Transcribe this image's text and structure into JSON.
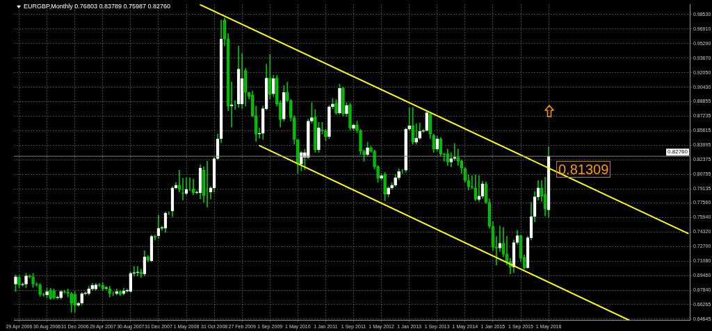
{
  "chart_data": {
    "type": "candlestick",
    "title": "EURGBP,Monthly 0.76803 0.83789 0.75987 0.82760",
    "color": "#00c800",
    "categories": [
      null,
      "29 Apr 2006",
      null,
      null,
      null,
      null,
      null,
      null,
      null,
      "30 Aug 2006",
      null,
      null,
      null,
      null,
      null,
      null,
      null,
      "31 Dec 2006",
      null,
      null,
      null,
      null,
      null,
      null,
      null,
      "29 Apr 2007",
      null,
      null,
      null,
      null,
      null,
      null,
      null,
      "30 Aug 2007",
      null,
      null,
      null,
      null,
      null,
      null,
      null,
      "31 Dec 2007",
      null,
      null,
      null,
      null,
      null,
      null,
      null,
      "1 May 2008",
      null,
      null,
      null,
      null,
      null,
      null,
      null,
      "31 Oct 2008",
      null,
      null,
      null,
      null,
      null,
      null,
      null,
      "27 Feb 2009",
      null,
      null,
      null,
      null,
      null,
      null,
      null,
      "1 Sep 2009",
      null,
      null,
      null,
      null,
      null,
      null,
      null,
      "1 May 2010",
      null,
      null,
      null,
      null,
      null,
      null,
      null,
      "1 Jan 2011",
      null,
      null,
      null,
      null,
      null,
      null,
      null,
      "1 Sep 2011",
      null,
      null,
      null,
      null,
      null,
      null,
      null,
      "1 May 2012",
      null,
      null,
      null,
      null,
      null,
      null,
      null,
      "1 Jan 2013",
      null,
      null,
      null,
      null,
      null,
      null,
      null,
      "1 Sep 2013",
      null,
      null,
      null,
      null,
      null,
      null,
      null,
      "1 May 2014",
      null,
      null,
      null,
      null,
      null,
      null,
      null,
      "1 Jan 2015",
      null,
      null,
      null,
      null,
      null,
      null,
      null,
      "1 Sep 2015",
      null,
      null,
      null,
      null,
      null,
      null,
      null,
      "1 May 2016",
      null,
      null,
      null,
      null,
      null,
      null,
      null,
      null,
      null,
      null,
      null,
      null,
      null,
      null,
      null,
      null,
      null,
      null,
      null,
      null,
      null,
      null,
      null,
      null,
      null,
      null,
      null,
      null,
      null,
      null,
      null,
      null,
      null,
      null,
      null,
      null,
      null,
      null,
      null,
      null
    ],
    "ohlc": [
      [
        0.6854,
        0.696,
        0.6771,
        0.6937
      ],
      [
        0.693,
        0.6952,
        0.6816,
        0.6846
      ],
      [
        0.6846,
        0.687,
        0.6831,
        0.6854
      ],
      [
        0.6854,
        0.6975,
        0.6816,
        0.6945
      ],
      [
        0.6945,
        0.696,
        0.6922,
        0.6937
      ],
      [
        0.6937,
        0.6975,
        0.6816,
        0.6854
      ],
      [
        0.6854,
        0.687,
        0.6831,
        0.6846
      ],
      [
        0.6846,
        0.6862,
        0.6718,
        0.674
      ],
      [
        0.674,
        0.6755,
        0.6718,
        0.6733
      ],
      [
        0.6733,
        0.6815,
        0.6702,
        0.6771
      ],
      [
        0.6786,
        0.6808,
        0.668,
        0.6695
      ],
      [
        0.6778,
        0.6801,
        0.6687,
        0.6702
      ],
      [
        0.6702,
        0.6725,
        0.6687,
        0.671
      ],
      [
        0.6702,
        0.6786,
        0.6687,
        0.6771
      ],
      [
        0.6771,
        0.6786,
        0.6748,
        0.6763
      ],
      [
        0.6763,
        0.6801,
        0.671,
        0.6755
      ],
      [
        0.6748,
        0.6763,
        0.6543,
        0.6642
      ],
      [
        0.674,
        0.6771,
        0.6543,
        0.6619
      ],
      [
        0.6619,
        0.6657,
        0.6604,
        0.6642
      ],
      [
        0.6642,
        0.6763,
        0.6619,
        0.6748
      ],
      [
        0.6748,
        0.6771,
        0.6733,
        0.6755
      ],
      [
        0.6748,
        0.6831,
        0.6733,
        0.6801
      ],
      [
        0.6801,
        0.6862,
        0.6786,
        0.6839
      ],
      [
        0.6801,
        0.6862,
        0.6786,
        0.6846
      ],
      [
        0.6846,
        0.6862,
        0.6823,
        0.6839
      ],
      [
        0.6839,
        0.687,
        0.6786,
        0.6801
      ],
      [
        0.6808,
        0.6831,
        0.6793,
        0.6815
      ],
      [
        0.6801,
        0.6831,
        0.671,
        0.6748
      ],
      [
        0.6748,
        0.6771,
        0.6725,
        0.6748
      ],
      [
        0.6748,
        0.6801,
        0.6733,
        0.6771
      ],
      [
        0.6771,
        0.6786,
        0.6725,
        0.674
      ],
      [
        0.6748,
        0.6808,
        0.6733,
        0.6778
      ],
      [
        0.6778,
        0.6801,
        0.6763,
        0.6786
      ],
      [
        0.6771,
        0.699,
        0.6763,
        0.6975
      ],
      [
        0.6975,
        0.7051,
        0.6945,
        0.6983
      ],
      [
        0.6983,
        0.7051,
        0.6945,
        0.699
      ],
      [
        0.699,
        0.702,
        0.693,
        0.6968
      ],
      [
        0.6968,
        0.7226,
        0.6945,
        0.7157
      ],
      [
        0.7157,
        0.7172,
        0.7104,
        0.7119
      ],
      [
        0.7112,
        0.74,
        0.7104,
        0.7385
      ],
      [
        0.7385,
        0.74,
        0.7347,
        0.7377
      ],
      [
        0.7393,
        0.762,
        0.7362,
        0.7476
      ],
      [
        0.7476,
        0.7499,
        0.7453,
        0.7484
      ],
      [
        0.7476,
        0.7658,
        0.7431,
        0.7643
      ],
      [
        0.7643,
        0.7658,
        0.7628,
        0.7643
      ],
      [
        0.7666,
        0.7939,
        0.7605,
        0.7924
      ],
      [
        0.7924,
        0.7984,
        0.7916,
        0.7954
      ],
      [
        0.7954,
        0.8121,
        0.7878,
        0.7908
      ],
      [
        0.787,
        0.803,
        0.7787,
        0.7863
      ],
      [
        0.7863,
        0.8037,
        0.7848,
        0.7908
      ],
      [
        0.7908,
        0.8037,
        0.7893,
        0.7908
      ],
      [
        0.7916,
        0.8022,
        0.7848,
        0.787
      ],
      [
        0.787,
        0.7893,
        0.7855,
        0.7878
      ],
      [
        0.787,
        0.8182,
        0.7802,
        0.8144
      ],
      [
        0.8121,
        0.8159,
        0.7764,
        0.784
      ],
      [
        0.7924,
        0.822,
        0.7711,
        0.7924
      ],
      [
        0.7878,
        0.7939,
        0.7802,
        0.7924
      ],
      [
        0.7924,
        0.8265,
        0.7878,
        0.825
      ],
      [
        0.825,
        0.8523,
        0.8235,
        0.847
      ],
      [
        0.847,
        0.979,
        0.8424,
        0.9578
      ],
      [
        0.979,
        0.9813,
        0.9502,
        0.9578
      ],
      [
        0.9578,
        0.9639,
        0.8782,
        0.8834
      ],
      [
        0.8834,
        0.91,
        0.8599,
        0.8849
      ],
      [
        0.8849,
        0.8895,
        0.8797,
        0.8849
      ],
      [
        0.8857,
        0.9502,
        0.8819,
        0.9244
      ],
      [
        0.8857,
        0.9419,
        0.8804,
        0.9138
      ],
      [
        0.9229,
        0.9252,
        0.8834,
        0.8986
      ],
      [
        0.8986,
        0.8986,
        0.891,
        0.894
      ],
      [
        0.8955,
        0.9001,
        0.8713,
        0.8728
      ],
      [
        0.8728,
        0.8834,
        0.844,
        0.8523
      ],
      [
        0.8523,
        0.8591,
        0.8477,
        0.8531
      ],
      [
        0.8531,
        0.8834,
        0.8462,
        0.8804
      ],
      [
        0.8804,
        0.9299,
        0.8789,
        0.9145
      ],
      [
        0.9145,
        0.9411,
        0.891,
        0.8963
      ],
      [
        0.8971,
        0.9176,
        0.894,
        0.9138
      ],
      [
        0.9145,
        0.9176,
        0.8834,
        0.8857
      ],
      [
        0.8872,
        0.8895,
        0.8599,
        0.8682
      ],
      [
        0.869,
        0.9062,
        0.8667,
        0.8986
      ],
      [
        0.8986,
        0.91,
        0.888,
        0.8895
      ],
      [
        0.8895,
        0.891,
        0.8667,
        0.8705
      ],
      [
        0.8705,
        0.8728,
        0.8409,
        0.8462
      ],
      [
        0.8462,
        0.8462,
        0.8083,
        0.8197
      ],
      [
        0.8189,
        0.8333,
        0.8113,
        0.8318
      ],
      [
        0.8265,
        0.8356,
        0.8128,
        0.8318
      ],
      [
        0.8265,
        0.869,
        0.825,
        0.8667
      ],
      [
        0.8667,
        0.8872,
        0.8644,
        0.8705
      ],
      [
        0.8713,
        0.8796,
        0.8318,
        0.8348
      ],
      [
        0.8348,
        0.8652,
        0.8318,
        0.8591
      ],
      [
        0.8568,
        0.8652,
        0.8523,
        0.8561
      ],
      [
        0.8561,
        0.8576,
        0.8447,
        0.8493
      ],
      [
        0.8493,
        0.8842,
        0.847,
        0.8827
      ],
      [
        0.8827,
        0.8918,
        0.8804,
        0.8857
      ],
      [
        0.8864,
        0.891,
        0.8743,
        0.8758
      ],
      [
        0.8758,
        0.9077,
        0.8743,
        0.9031
      ],
      [
        0.9031,
        0.9046,
        0.872,
        0.8751
      ],
      [
        0.8751,
        0.8872,
        0.872,
        0.8842
      ],
      [
        0.8849,
        0.8864,
        0.8568,
        0.8591
      ],
      [
        0.8584,
        0.8637,
        0.8561,
        0.8622
      ],
      [
        0.8622,
        0.8667,
        0.8538,
        0.8561
      ],
      [
        0.8561,
        0.8576,
        0.8295,
        0.8333
      ],
      [
        0.8333,
        0.8348,
        0.822,
        0.8295
      ],
      [
        0.8295,
        0.8432,
        0.828,
        0.8371
      ],
      [
        0.8371,
        0.8386,
        0.8318,
        0.8333
      ],
      [
        0.8333,
        0.8348,
        0.8136,
        0.8159
      ],
      [
        0.8159,
        0.8174,
        0.7984,
        0.803
      ],
      [
        0.803,
        0.8083,
        0.8007,
        0.806
      ],
      [
        0.8075,
        0.8098,
        0.778,
        0.7855
      ],
      [
        0.7855,
        0.7939,
        0.7825,
        0.7924
      ],
      [
        0.7924,
        0.7984,
        0.7908,
        0.7954
      ],
      [
        0.7954,
        0.8075,
        0.7939,
        0.8037
      ],
      [
        0.8037,
        0.8136,
        0.8015,
        0.8106
      ],
      [
        0.8106,
        0.8128,
        0.8083,
        0.8106
      ],
      [
        0.8121,
        0.8591,
        0.8098,
        0.8576
      ],
      [
        0.8576,
        0.8819,
        0.8561,
        0.8614
      ],
      [
        0.8614,
        0.8819,
        0.8409,
        0.8432
      ],
      [
        0.8432,
        0.8637,
        0.8409,
        0.8477
      ],
      [
        0.8477,
        0.8644,
        0.8462,
        0.8553
      ],
      [
        0.8553,
        0.8576,
        0.8538,
        0.8561
      ],
      [
        0.8561,
        0.8773,
        0.8553,
        0.8758
      ],
      [
        0.8743,
        0.8758,
        0.847,
        0.8523
      ],
      [
        0.8508,
        0.8523,
        0.8318,
        0.8356
      ],
      [
        0.8356,
        0.85,
        0.8333,
        0.847
      ],
      [
        0.847,
        0.8485,
        0.828,
        0.8303
      ],
      [
        0.8303,
        0.831,
        0.822,
        0.8295
      ],
      [
        0.8303,
        0.8356,
        0.8174,
        0.8212
      ],
      [
        0.8212,
        0.8318,
        0.8159,
        0.825
      ],
      [
        0.825,
        0.8417,
        0.8227,
        0.8265
      ],
      [
        0.8265,
        0.8356,
        0.8174,
        0.822
      ],
      [
        0.822,
        0.8235,
        0.8083,
        0.8144
      ],
      [
        0.8136,
        0.8151,
        0.7984,
        0.8007
      ],
      [
        0.8007,
        0.8068,
        0.7901,
        0.7939
      ],
      [
        0.7939,
        0.806,
        0.7916,
        0.7931
      ],
      [
        0.7924,
        0.8068,
        0.778,
        0.7795
      ],
      [
        0.7795,
        0.806,
        0.7772,
        0.7833
      ],
      [
        0.7833,
        0.7999,
        0.781,
        0.7969
      ],
      [
        0.7969,
        0.7992,
        0.7749,
        0.7764
      ],
      [
        0.7764,
        0.7802,
        0.7476,
        0.7499
      ],
      [
        0.7499,
        0.7552,
        0.7226,
        0.7264
      ],
      [
        0.7264,
        0.7385,
        0.7066,
        0.7256
      ],
      [
        0.7256,
        0.7499,
        0.7218,
        0.7309
      ],
      [
        0.7309,
        0.7484,
        0.7157,
        0.7188
      ],
      [
        0.7188,
        0.7385,
        0.7066,
        0.7104
      ],
      [
        0.7104,
        0.7142,
        0.6968,
        0.7043
      ],
      [
        0.7043,
        0.7347,
        0.6983,
        0.7317
      ],
      [
        0.7317,
        0.7453,
        0.7294,
        0.7393
      ],
      [
        0.7393,
        0.74,
        0.7104,
        0.7142
      ],
      [
        0.715,
        0.718,
        0.702,
        0.7036
      ],
      [
        0.7036,
        0.7385,
        0.7028,
        0.737
      ],
      [
        0.737,
        0.7764,
        0.7347,
        0.7605
      ],
      [
        0.7605,
        0.7886,
        0.7545,
        0.7825
      ],
      [
        0.7825,
        0.8007,
        0.7787,
        0.7924
      ],
      [
        0.7924,
        0.8007,
        0.7772,
        0.7833
      ],
      [
        0.7855,
        0.8045,
        0.7613,
        0.7689
      ],
      [
        0.76803,
        0.83789,
        0.75987,
        0.8276
      ],
      null,
      null,
      null,
      null,
      null,
      null,
      null,
      null,
      null,
      null,
      null,
      null,
      null,
      null,
      null,
      null,
      null,
      null,
      null,
      null,
      null,
      null,
      null,
      null,
      null,
      null,
      null,
      null,
      null,
      null,
      null,
      null,
      null,
      null,
      null,
      null,
      null,
      null,
      null,
      null
    ],
    "series": [
      {
        "type": "line",
        "color": "#ffff00",
        "values": [
          null,
          null,
          null,
          null,
          null,
          null,
          null,
          null,
          null,
          null,
          null,
          null,
          null,
          null,
          null,
          null,
          null,
          null,
          null,
          null,
          null,
          null,
          null,
          null,
          null,
          null,
          null,
          null,
          null,
          null,
          null,
          null,
          null,
          null,
          null,
          null,
          null,
          null,
          null,
          null,
          null,
          null,
          null,
          null,
          null,
          null,
          null,
          null,
          null,
          null,
          null,
          null,
          null,
          0.996,
          null,
          null,
          null,
          null,
          null,
          null,
          null,
          null,
          null,
          null,
          null,
          null,
          null,
          null,
          null,
          null,
          null,
          null,
          null,
          null,
          null,
          null,
          null,
          null,
          null,
          null,
          null,
          null,
          null,
          null,
          null,
          null,
          null,
          null,
          null,
          null,
          null,
          null,
          null,
          null,
          null,
          null,
          null,
          null,
          null,
          null,
          null,
          null,
          null,
          null,
          null,
          null,
          null,
          null,
          null,
          null,
          null,
          null,
          null,
          null,
          null,
          null,
          null,
          null,
          null,
          null,
          null,
          null,
          null,
          null,
          null,
          null,
          null,
          null,
          null,
          null,
          null,
          null,
          null,
          null,
          null,
          null,
          null,
          null,
          null,
          null,
          null,
          null,
          null,
          null,
          null,
          null,
          null,
          null,
          null,
          null,
          null,
          null,
          null,
          null,
          null,
          null,
          null,
          null,
          null,
          null,
          null,
          null,
          null,
          null,
          null,
          null,
          null,
          null,
          null,
          null,
          null,
          null,
          null,
          null,
          null,
          null,
          null,
          null,
          null,
          null,
          null,
          null,
          null,
          null,
          null,
          null,
          null,
          null,
          null,
          null,
          null,
          null,
          null,
          0.7418
        ]
      },
      {
        "type": "line",
        "color": "#ffff00",
        "values": [
          null,
          null,
          null,
          null,
          null,
          null,
          null,
          null,
          null,
          null,
          null,
          null,
          null,
          null,
          null,
          null,
          null,
          null,
          null,
          null,
          null,
          null,
          null,
          null,
          null,
          null,
          null,
          null,
          null,
          null,
          null,
          null,
          null,
          null,
          null,
          null,
          null,
          null,
          null,
          null,
          null,
          null,
          null,
          null,
          null,
          null,
          null,
          null,
          null,
          null,
          null,
          null,
          null,
          null,
          null,
          null,
          null,
          null,
          null,
          null,
          null,
          null,
          null,
          null,
          null,
          null,
          null,
          null,
          null,
          null,
          0.8394,
          null,
          null,
          null,
          null,
          null,
          null,
          null,
          null,
          null,
          null,
          null,
          null,
          null,
          null,
          null,
          null,
          null,
          null,
          null,
          null,
          null,
          null,
          null,
          null,
          null,
          null,
          null,
          null,
          null,
          null,
          null,
          null,
          null,
          null,
          null,
          null,
          null,
          null,
          null,
          null,
          null,
          null,
          null,
          null,
          null,
          null,
          null,
          null,
          null,
          null,
          null,
          null,
          null,
          null,
          null,
          null,
          null,
          null,
          null,
          null,
          null,
          null,
          null,
          null,
          null,
          null,
          null,
          null,
          null,
          null,
          null,
          null,
          null,
          null,
          null,
          null,
          null,
          null,
          null,
          null,
          null,
          null,
          null,
          null,
          null,
          null,
          null,
          null,
          null,
          null,
          null,
          null,
          null,
          null,
          null,
          null,
          null,
          null,
          null,
          null,
          null,
          null,
          null,
          null,
          null,
          0.6455,
          null,
          null,
          null,
          null,
          null,
          null,
          null,
          null,
          null,
          null,
          null,
          null,
          null,
          null,
          null,
          null,
          null
        ]
      }
    ],
    "ylim": [
      0.6452,
      0.9965
    ],
    "yticks": [
      {
        "value": 0.64645,
        "label": "0.64645"
      },
      {
        "value": 0.66265,
        "label": "0.66265"
      },
      {
        "value": 0.6784,
        "label": "0.67840"
      },
      {
        "value": 0.6946,
        "label": "0.69460"
      },
      {
        "value": 0.7108,
        "label": "0.71080"
      },
      {
        "value": 0.727,
        "label": "0.72700"
      },
      {
        "value": 0.7432,
        "label": "0.74320"
      },
      {
        "value": 0.7594,
        "label": "0.75940"
      },
      {
        "value": 0.7756,
        "label": "0.77560"
      },
      {
        "value": 0.79135,
        "label": "0.79135"
      },
      {
        "value": 0.80755,
        "label": "0.80755"
      },
      {
        "value": 0.82375,
        "label": "0.82375"
      },
      {
        "value": 0.83995,
        "label": "0.83995"
      },
      {
        "value": 0.85615,
        "label": "0.85615"
      },
      {
        "value": 0.87235,
        "label": "0.87235"
      },
      {
        "value": 0.88855,
        "label": "0.88855"
      },
      {
        "value": 0.9043,
        "label": "0.90430"
      },
      {
        "value": 0.9205,
        "label": "0.92050"
      },
      {
        "value": 0.9367,
        "label": "0.93670"
      },
      {
        "value": 0.9529,
        "label": "0.95290"
      },
      {
        "value": 0.9691,
        "label": "0.96910"
      },
      {
        "value": 0.9853,
        "label": "0.98530"
      }
    ],
    "grid": true,
    "ref_lines": [
      {
        "axis": "y",
        "value": 0.8276,
        "label": "0.82760",
        "color": "#808080"
      }
    ],
    "annotations": [
      "0.81309"
    ],
    "colors": [
      "#ffffff",
      "#00c800",
      "#ffffff",
      "#ffffff",
      "#00c800",
      "#00c800",
      "#00c800",
      "#00c800",
      "#00c800",
      "#ffffff",
      "#00c800",
      "#00c800",
      "#ffffff",
      "#ffffff",
      "#00c800",
      "#00c800",
      "#00c800",
      "#00c800",
      "#ffffff",
      "#ffffff",
      "#ffffff",
      "#ffffff",
      "#ffffff",
      "#ffffff",
      "#00c800",
      "#00c800",
      "#ffffff",
      "#00c800",
      "#ffffff",
      "#ffffff",
      "#00c800",
      "#ffffff",
      "#ffffff",
      "#ffffff",
      "#ffffff",
      "#ffffff",
      "#00c800",
      "#ffffff",
      "#00c800",
      "#ffffff",
      "#00c800",
      "#ffffff",
      "#ffffff",
      "#ffffff",
      "#ffffff",
      "#ffffff",
      "#ffffff",
      "#00c800",
      "#00c800",
      "#ffffff",
      "#ffffff",
      "#00c800",
      "#ffffff",
      "#ffffff",
      "#00c800",
      "#ffffff",
      "#ffffff",
      "#ffffff",
      "#ffffff",
      "#ffffff",
      "#00c800",
      "#00c800",
      "#ffffff",
      "#ffffff",
      "#ffffff",
      "#ffffff",
      "#00c800",
      "#00c800",
      "#00c800",
      "#00c800",
      "#ffffff",
      "#ffffff",
      "#ffffff",
      "#00c800",
      "#ffffff",
      "#00c800",
      "#00c800",
      "#ffffff",
      "#00c800",
      "#00c800",
      "#00c800",
      "#00c800",
      "#ffffff",
      "#ffffff",
      "#ffffff",
      "#ffffff",
      "#00c800",
      "#ffffff",
      "#00c800",
      "#00c800",
      "#ffffff",
      "#ffffff",
      "#00c800",
      "#ffffff",
      "#00c800",
      "#ffffff",
      "#00c800",
      "#ffffff",
      "#00c800",
      "#00c800",
      "#00c800",
      "#ffffff",
      "#00c800",
      "#00c800",
      "#00c800",
      "#ffffff",
      "#00c800",
      "#ffffff",
      "#ffffff",
      "#ffffff",
      "#ffffff",
      "#ffffff",
      "#ffffff",
      "#ffffff",
      "#00c800",
      "#ffffff",
      "#ffffff",
      "#ffffff",
      "#ffffff",
      "#00c800",
      "#00c800",
      "#ffffff",
      "#00c800",
      "#00c800",
      "#00c800",
      "#ffffff",
      "#ffffff",
      "#00c800",
      "#00c800",
      "#00c800",
      "#00c800",
      "#00c800",
      "#00c800",
      "#ffffff",
      "#ffffff",
      "#00c800",
      "#00c800",
      "#00c800",
      "#00c800",
      "#ffffff",
      "#00c800",
      "#00c800",
      "#00c800",
      "#ffffff",
      "#ffffff",
      "#00c800",
      "#00c800",
      "#ffffff",
      "#ffffff",
      "#ffffff",
      "#ffffff",
      "#00c800",
      "#00c800",
      "#ffffff",
      null,
      null,
      null,
      null,
      null,
      null,
      null,
      null,
      null,
      null,
      null,
      null,
      null,
      null,
      null,
      null,
      null,
      null,
      null,
      null,
      null,
      null,
      null,
      null,
      null,
      null,
      null,
      null,
      null,
      null,
      null,
      null,
      null,
      null,
      null,
      null,
      null,
      null,
      null,
      null
    ]
  }
}
